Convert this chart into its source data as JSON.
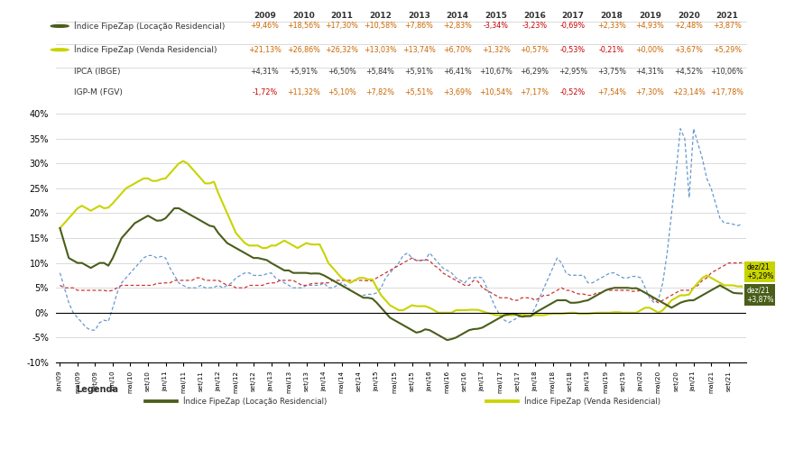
{
  "title": "",
  "years": [
    2009,
    2010,
    2011,
    2012,
    2013,
    2014,
    2015,
    2016,
    2017,
    2018,
    2019,
    2020,
    2021
  ],
  "header_values": {
    "locacao": [
      "+9,46%",
      "+18,56%",
      "+17,30%",
      "+10,58%",
      "+7,86%",
      "+2,83%",
      "-3,34%",
      "-3,23%",
      "-0,69%",
      "+2,33%",
      "+4,93%",
      "+2,48%",
      "+3,87%"
    ],
    "venda": [
      "+21,13%",
      "+26,86%",
      "+26,32%",
      "+13,03%",
      "+13,74%",
      "+6,70%",
      "+1,32%",
      "+0,57%",
      "-0,53%",
      "-0,21%",
      "+0,00%",
      "+3,67%",
      "+5,29%"
    ],
    "ipca": [
      "+4,31%",
      "+5,91%",
      "+6,50%",
      "+5,84%",
      "+5,91%",
      "+6,41%",
      "+10,67%",
      "+6,29%",
      "+2,95%",
      "+3,75%",
      "+4,31%",
      "+4,52%",
      "+10,06%"
    ],
    "igpm": [
      "-1,72%",
      "+11,32%",
      "+5,10%",
      "+7,82%",
      "+5,51%",
      "+3,69%",
      "+10,54%",
      "+7,17%",
      "-0,52%",
      "+7,54%",
      "+7,30%",
      "+23,14%",
      "+17,78%"
    ]
  },
  "locacao_line_color": "#4a5e1a",
  "venda_line_color": "#c8d400",
  "ipca_line_color": "#cc3333",
  "igpm_line_color": "#6699cc",
  "ylim": [
    -0.1,
    0.42
  ],
  "yticks": [
    -0.1,
    -0.05,
    0.0,
    0.05,
    0.1,
    0.15,
    0.2,
    0.25,
    0.3,
    0.35,
    0.4
  ],
  "background_color": "#ffffff",
  "grid_color": "#cccccc"
}
